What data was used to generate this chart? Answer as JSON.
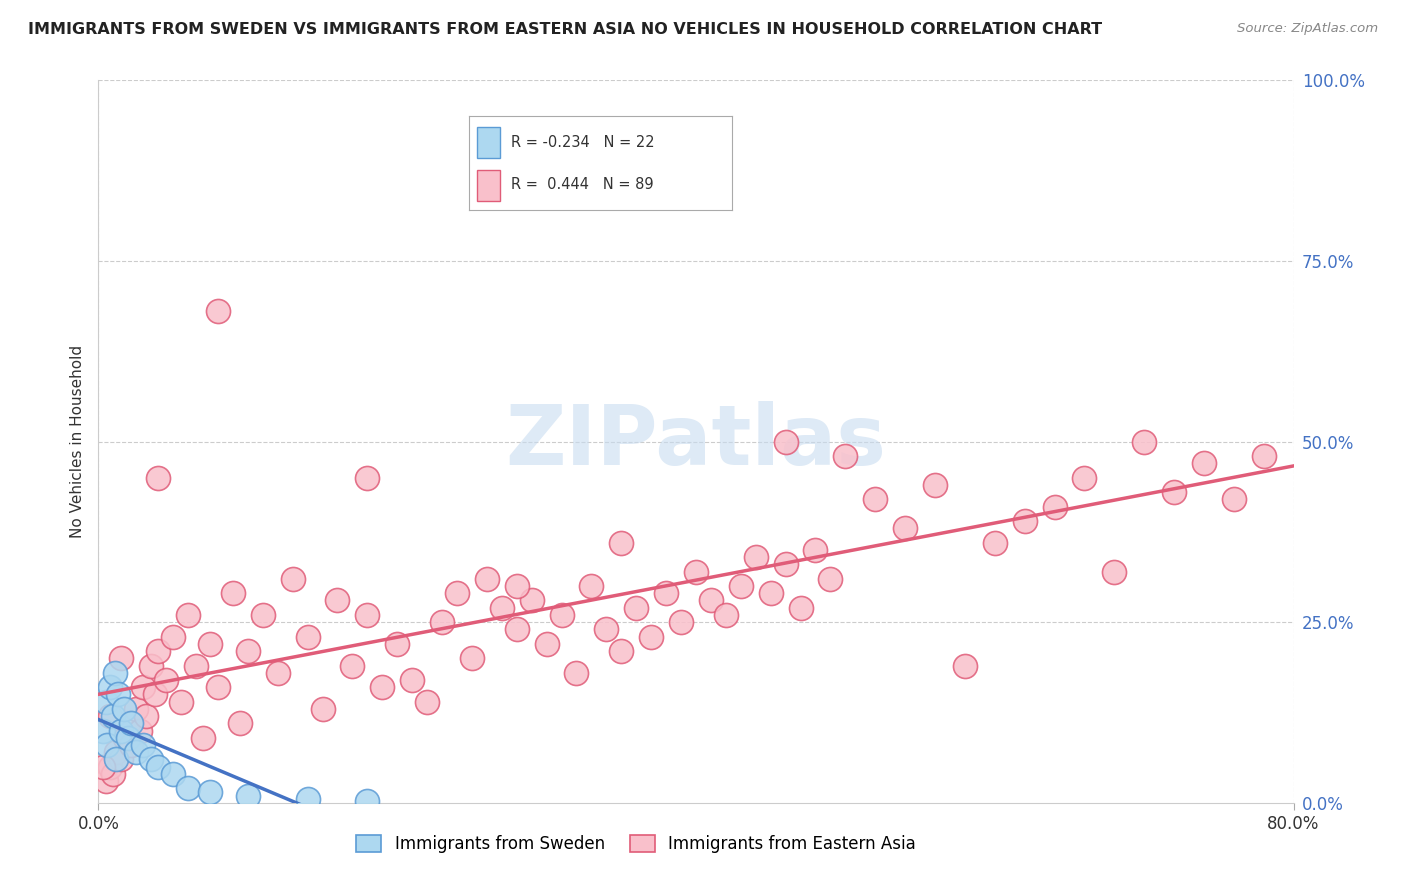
{
  "title": "IMMIGRANTS FROM SWEDEN VS IMMIGRANTS FROM EASTERN ASIA NO VEHICLES IN HOUSEHOLD CORRELATION CHART",
  "source": "Source: ZipAtlas.com",
  "ylabel": "No Vehicles in Household",
  "xlim": [
    0,
    80
  ],
  "ylim": [
    0,
    100
  ],
  "ytick_vals": [
    0,
    25,
    50,
    75,
    100
  ],
  "ytick_labels": [
    "0.0%",
    "25.0%",
    "50.0%",
    "75.0%",
    "100.0%"
  ],
  "xtick_vals": [
    0,
    80
  ],
  "xtick_labels": [
    "0.0%",
    "80.0%"
  ],
  "blue_color": "#ADD8F0",
  "blue_edge_color": "#5B9BD5",
  "pink_color": "#F9C0CB",
  "pink_edge_color": "#E05C78",
  "blue_line_color": "#4472C4",
  "pink_line_color": "#E05C78",
  "tick_label_color": "#4472C4",
  "watermark_color": "#C8DCF0",
  "watermark_text": "ZIPatlas",
  "legend_r_blue": "R = -0.234",
  "legend_n_blue": "N = 22",
  "legend_r_pink": "R =  0.444",
  "legend_n_pink": "N = 89",
  "blue_x": [
    0.3,
    0.5,
    0.6,
    0.8,
    1.0,
    1.1,
    1.2,
    1.3,
    1.5,
    1.7,
    2.0,
    2.2,
    2.5,
    3.0,
    3.5,
    4.0,
    5.0,
    6.0,
    7.5,
    10.0,
    14.0,
    18.0
  ],
  "blue_y": [
    10.0,
    14.0,
    8.0,
    16.0,
    12.0,
    18.0,
    6.0,
    15.0,
    10.0,
    13.0,
    9.0,
    11.0,
    7.0,
    8.0,
    6.0,
    5.0,
    4.0,
    2.0,
    1.5,
    1.0,
    0.5,
    0.3
  ],
  "pink_x": [
    0.5,
    0.8,
    1.0,
    1.2,
    1.5,
    1.8,
    2.0,
    2.2,
    2.5,
    2.8,
    3.0,
    3.2,
    3.5,
    3.8,
    4.0,
    4.5,
    5.0,
    5.5,
    6.0,
    6.5,
    7.0,
    7.5,
    8.0,
    9.0,
    9.5,
    10.0,
    11.0,
    12.0,
    13.0,
    14.0,
    15.0,
    16.0,
    17.0,
    18.0,
    19.0,
    20.0,
    21.0,
    22.0,
    23.0,
    24.0,
    25.0,
    26.0,
    27.0,
    28.0,
    29.0,
    30.0,
    31.0,
    32.0,
    33.0,
    34.0,
    35.0,
    36.0,
    37.0,
    38.0,
    39.0,
    40.0,
    41.0,
    42.0,
    43.0,
    44.0,
    45.0,
    46.0,
    47.0,
    48.0,
    49.0,
    50.0,
    52.0,
    54.0,
    56.0,
    58.0,
    60.0,
    62.0,
    64.0,
    66.0,
    68.0,
    70.0,
    72.0,
    74.0,
    76.0,
    78.0,
    46.0,
    35.0,
    28.0,
    18.0,
    8.0,
    4.0,
    1.5,
    0.8,
    0.3
  ],
  "pink_y": [
    3.0,
    5.0,
    4.0,
    7.0,
    6.0,
    9.0,
    11.0,
    8.0,
    13.0,
    10.0,
    16.0,
    12.0,
    19.0,
    15.0,
    21.0,
    17.0,
    23.0,
    14.0,
    26.0,
    19.0,
    9.0,
    22.0,
    16.0,
    29.0,
    11.0,
    21.0,
    26.0,
    18.0,
    31.0,
    23.0,
    13.0,
    28.0,
    19.0,
    26.0,
    16.0,
    22.0,
    17.0,
    14.0,
    25.0,
    29.0,
    20.0,
    31.0,
    27.0,
    24.0,
    28.0,
    22.0,
    26.0,
    18.0,
    30.0,
    24.0,
    21.0,
    27.0,
    23.0,
    29.0,
    25.0,
    32.0,
    28.0,
    26.0,
    30.0,
    34.0,
    29.0,
    33.0,
    27.0,
    35.0,
    31.0,
    48.0,
    42.0,
    38.0,
    44.0,
    19.0,
    36.0,
    39.0,
    41.0,
    45.0,
    32.0,
    50.0,
    43.0,
    47.0,
    42.0,
    48.0,
    50.0,
    36.0,
    30.0,
    45.0,
    68.0,
    45.0,
    20.0,
    12.0,
    5.0
  ],
  "blue_trend_x": [
    0,
    80
  ],
  "blue_trend_y": [
    14.0,
    0.0
  ],
  "pink_trend_x": [
    0,
    80
  ],
  "pink_trend_y": [
    24.0,
    50.0
  ]
}
